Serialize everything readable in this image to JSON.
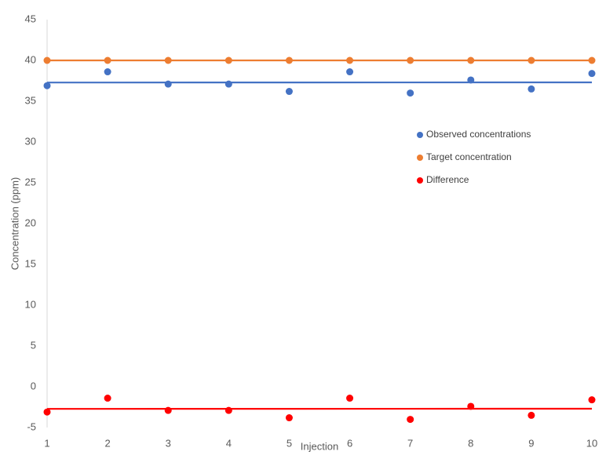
{
  "chart_data": {
    "type": "scatter",
    "x_label": "Injection",
    "y_label": "Concentration (ppm)",
    "x": [
      1,
      2,
      3,
      4,
      5,
      6,
      7,
      8,
      9,
      10
    ],
    "series": [
      {
        "name": "Observed concentrations",
        "color": "#4472c4",
        "trendline": "linear",
        "values": [
          36.9,
          38.6,
          37.1,
          37.1,
          36.2,
          38.6,
          36.0,
          37.6,
          36.5,
          38.4
        ]
      },
      {
        "name": "Target concentration",
        "color": "#ed7d31",
        "trendline": "linear",
        "values": [
          40,
          40,
          40,
          40,
          40,
          40,
          40,
          40,
          40,
          40
        ]
      },
      {
        "name": "Difference",
        "color": "#ff0000",
        "trendline": "linear",
        "values": [
          -3.1,
          -1.4,
          -2.9,
          -2.9,
          -3.8,
          -1.4,
          -4.0,
          -2.4,
          -3.5,
          -1.6
        ]
      }
    ],
    "xlim": [
      1,
      10
    ],
    "xticks": [
      1,
      2,
      3,
      4,
      5,
      6,
      7,
      8,
      9,
      10
    ],
    "ylim": [
      -5,
      45
    ],
    "yticks": [
      -5,
      0,
      5,
      10,
      15,
      20,
      25,
      30,
      35,
      40,
      45
    ],
    "grid": false,
    "legend": "inside-right"
  }
}
